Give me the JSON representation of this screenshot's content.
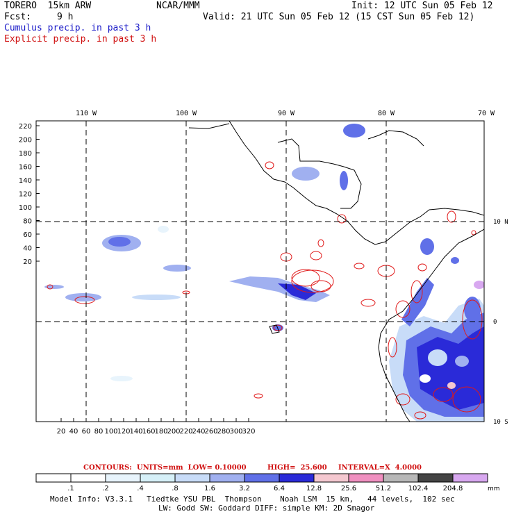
{
  "header": {
    "model": "TORERO  15km ARW",
    "org": "NCAR/MMM",
    "init": "Init: 12 UTC Sun 05 Feb 12",
    "fcst_label": "Fcst:",
    "fcst_value": "9 h",
    "valid": "Valid: 21 UTC Sun 05 Feb 12 (15 CST Sun 05 Feb 12)",
    "cumulus": "Cumulus precip. in past 3 h",
    "explicit": "Explicit precip. in past 3 h"
  },
  "map": {
    "lon_labels": [
      "110 W",
      "100 W",
      "90 W",
      "80 W",
      "70 W"
    ],
    "lat_labels": [
      "10 N",
      "0",
      "10 S"
    ],
    "y_ticks": [
      "220",
      "200",
      "180",
      "160",
      "140",
      "120",
      "100",
      "80",
      "60",
      "40",
      "20"
    ],
    "x_ticks": [
      "20",
      "40",
      "60",
      "80",
      "100",
      "120",
      "140",
      "160",
      "180",
      "200",
      "220",
      "240",
      "260",
      "280",
      "300",
      "320"
    ]
  },
  "contours": {
    "units": "CONTOURS:  UNITS=mm  LOW= 0.10000",
    "high": "HIGH=  25.600",
    "interval": "INTERVAL=X  4.0000"
  },
  "colorbar": {
    "unit": "mm",
    "levels": [
      ".1",
      ".2",
      ".4",
      ".8",
      "1.6",
      "3.2",
      "6.4",
      "12.8",
      "25.6",
      "51.2",
      "102.4",
      "204.8"
    ],
    "colors": [
      "#ffffff",
      "#ffffff",
      "#e8f4fc",
      "#d6f0f8",
      "#c8dcf8",
      "#a0b0f0",
      "#6070e8",
      "#2a2ad8",
      "#f4c8d0",
      "#f090c0",
      "#b8b8b8",
      "#444444",
      "#d8a8f0"
    ]
  },
  "footer": {
    "line1": "Model Info: V3.3.1   Tiedtke YSU PBL  Thompson    Noah LSM  15 km,   44 levels,  102 sec",
    "line2": "LW: Godd SW: Goddard DIFF: simple KM: 2D Smagor"
  }
}
